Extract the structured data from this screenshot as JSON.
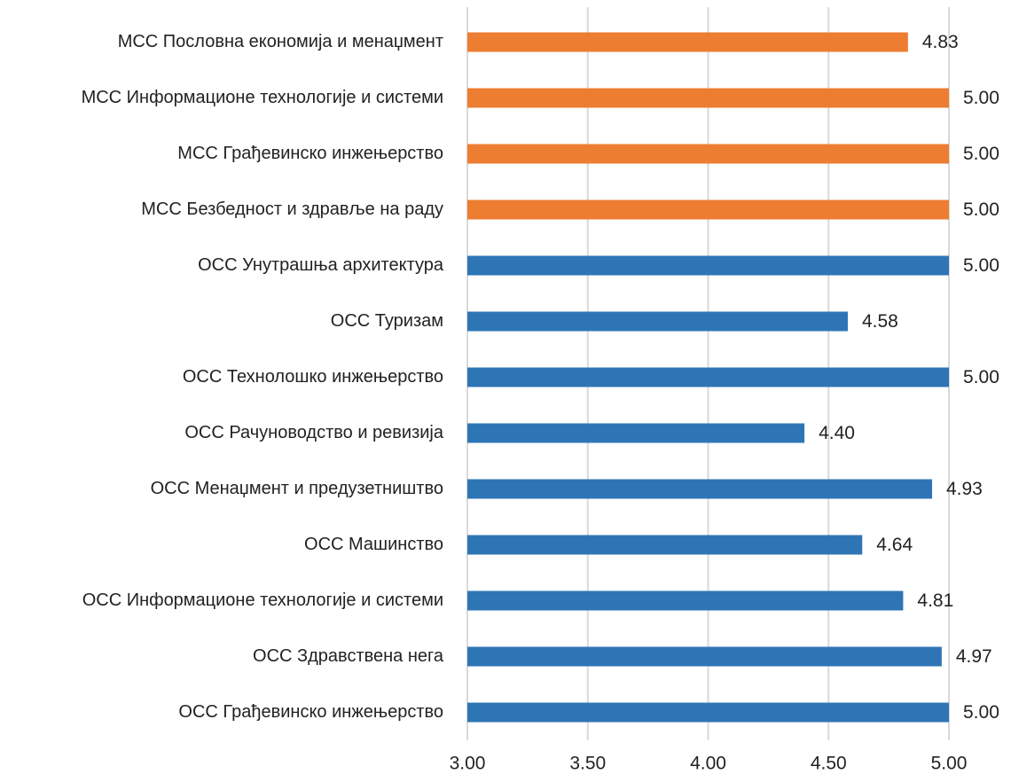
{
  "chart_data": {
    "type": "bar",
    "orientation": "horizontal",
    "categories": [
      "МСС Пословна економија и менаџмент",
      "МСС Информационе технологије и системи",
      "МСС Грађевинско инжењерство",
      "МСС Безбедност и здравље на раду",
      "ОСС Унутрашња архитектура",
      "ОСС Туризам",
      "ОСС Технолошко инжењерство",
      "ОСС Рачуноводство и ревизија",
      "ОСС Менаџмент и предузетништво",
      "ОСС Машинство",
      "ОСС Информационе технологије и системи",
      "ОСС Здравствена нега",
      "ОСС Грађевинско инжењерство"
    ],
    "values": [
      4.83,
      5,
      5,
      5,
      5,
      4.58,
      5,
      4.4,
      4.93,
      4.64,
      4.81,
      4.97,
      5
    ],
    "value_labels": [
      "4.83",
      "5.00",
      "5.00",
      "5.00",
      "5.00",
      "4.58",
      "5.00",
      "4.40",
      "4.93",
      "4.64",
      "4.81",
      "4.97",
      "5.00"
    ],
    "colors": [
      "#ed7d31",
      "#ed7d31",
      "#ed7d31",
      "#ed7d31",
      "#2e75b6",
      "#2e75b6",
      "#2e75b6",
      "#2e75b6",
      "#2e75b6",
      "#2e75b6",
      "#2e75b6",
      "#2e75b6",
      "#2e75b6"
    ],
    "xlim": [
      3,
      5
    ],
    "xticks": [
      {
        "value": 3,
        "label": "3.00"
      },
      {
        "value": 3.5,
        "label": "3.50"
      },
      {
        "value": 4,
        "label": "4.00"
      },
      {
        "value": 4.5,
        "label": "4.50"
      },
      {
        "value": 5,
        "label": "5.00"
      }
    ],
    "grid": true
  }
}
